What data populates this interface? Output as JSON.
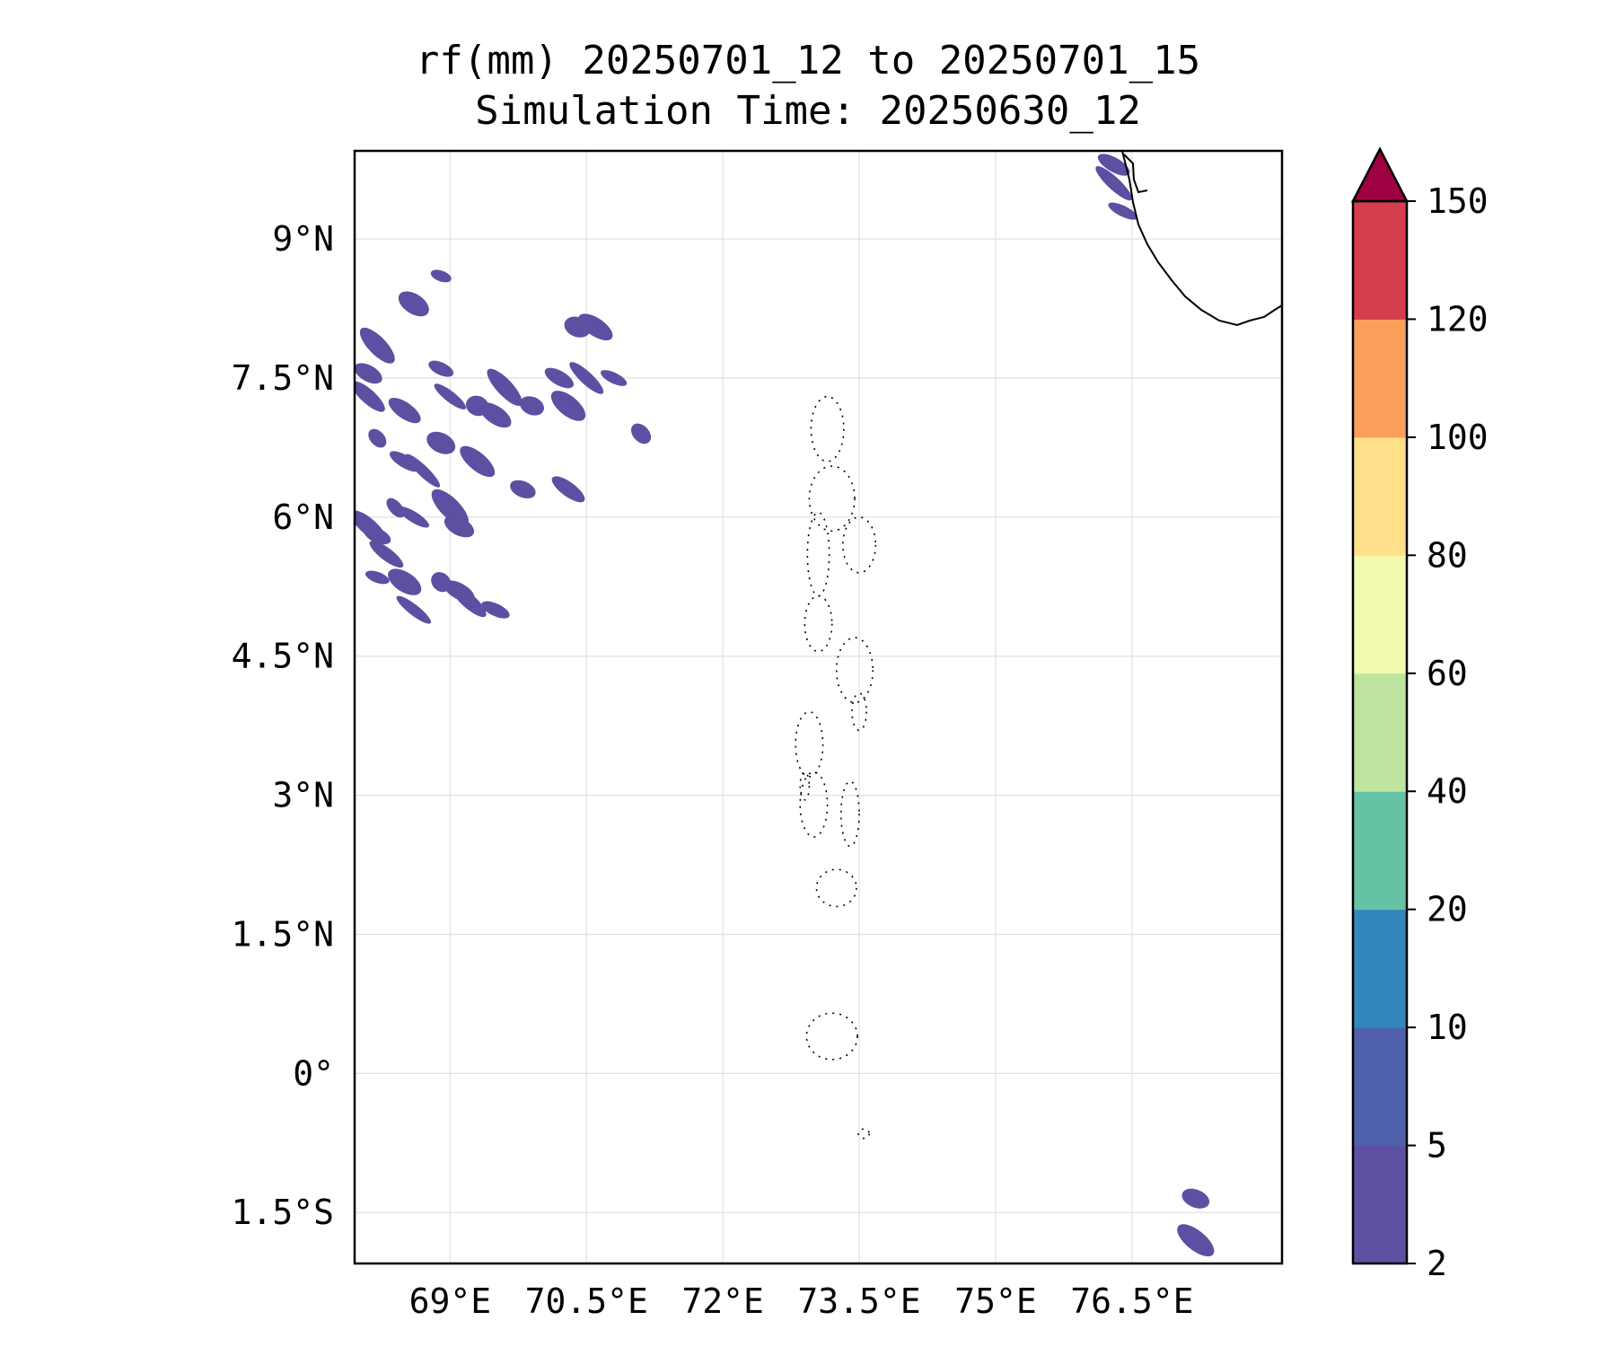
{
  "title": {
    "line1": "rf(mm) 20250701_12 to 20250701_15",
    "line2": "Simulation Time: 20250630_12"
  },
  "map": {
    "lon_range": [
      67.95,
      78.15
    ],
    "lat_range": [
      -2.05,
      9.95
    ],
    "lon_ticks": [
      69,
      70.5,
      72,
      73.5,
      75,
      76.5
    ],
    "lon_tick_labels": [
      "69°E",
      "70.5°E",
      "72°E",
      "73.5°E",
      "75°E",
      "76.5°E"
    ],
    "lat_ticks": [
      9,
      7.5,
      6,
      4.5,
      3,
      1.5,
      0,
      -1.5
    ],
    "lat_tick_labels": [
      "9°N",
      "7.5°N",
      "6°N",
      "4.5°N",
      "3°N",
      "1.5°N",
      "0°",
      "1.5°S"
    ],
    "gridlines": true,
    "rain_color": "#5e4fa2",
    "rain_cells": [
      [
        68.9,
        8.6
      ],
      [
        68.6,
        8.3
      ],
      [
        68.2,
        7.85
      ],
      [
        68.1,
        7.55
      ],
      [
        68.1,
        7.3
      ],
      [
        68.9,
        7.6
      ],
      [
        69.0,
        7.3
      ],
      [
        69.3,
        7.2
      ],
      [
        69.5,
        7.1
      ],
      [
        69.6,
        7.4
      ],
      [
        70.2,
        7.5
      ],
      [
        70.5,
        7.5
      ],
      [
        70.8,
        7.5
      ],
      [
        70.3,
        7.2
      ],
      [
        69.9,
        7.2
      ],
      [
        68.5,
        7.15
      ],
      [
        68.2,
        6.85
      ],
      [
        68.5,
        6.6
      ],
      [
        68.7,
        6.5
      ],
      [
        68.9,
        6.8
      ],
      [
        69.3,
        6.6
      ],
      [
        69.8,
        6.3
      ],
      [
        70.3,
        6.3
      ],
      [
        68.4,
        6.1
      ],
      [
        68.6,
        6.0
      ],
      [
        69.0,
        6.1
      ],
      [
        69.1,
        5.9
      ],
      [
        68.1,
        5.9
      ],
      [
        68.2,
        5.8
      ],
      [
        68.3,
        5.6
      ],
      [
        68.2,
        5.35
      ],
      [
        68.5,
        5.3
      ],
      [
        68.9,
        5.3
      ],
      [
        69.1,
        5.2
      ],
      [
        69.2,
        5.1
      ],
      [
        69.5,
        5.0
      ],
      [
        68.6,
        5.0
      ],
      [
        70.4,
        8.05
      ],
      [
        70.6,
        8.05
      ],
      [
        71.1,
        6.9
      ],
      [
        76.3,
        9.8
      ],
      [
        76.3,
        9.6
      ],
      [
        76.4,
        9.3
      ],
      [
        77.2,
        -1.8
      ],
      [
        77.2,
        -1.35
      ]
    ],
    "coast_color": "#000000"
  },
  "colorbar": {
    "levels": [
      2,
      5,
      10,
      20,
      40,
      60,
      80,
      100,
      120,
      150
    ],
    "labels": [
      "2",
      "5",
      "10",
      "20",
      "40",
      "60",
      "80",
      "100",
      "120",
      "150"
    ],
    "colors": [
      "#5e4fa2",
      "#4f61aa",
      "#3288bd",
      "#66c2a5",
      "#bee5a0",
      "#f3faad",
      "#fee08b",
      "#fba05b",
      "#d53e4f"
    ],
    "extend_color": "#9e0142",
    "extend": "max"
  }
}
